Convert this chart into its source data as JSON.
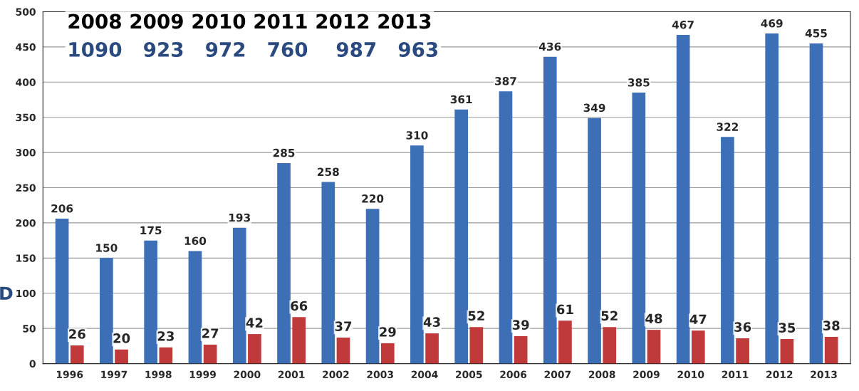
{
  "chart_data": {
    "type": "bar",
    "categories": [
      "1996",
      "1997",
      "1998",
      "1999",
      "2000",
      "2001",
      "2002",
      "2003",
      "2004",
      "2005",
      "2006",
      "2007",
      "2008",
      "2009",
      "2010",
      "2011",
      "2012",
      "2013"
    ],
    "series": [
      {
        "color": "#3d6fb6",
        "values": [
          206,
          150,
          175,
          160,
          193,
          285,
          258,
          220,
          310,
          361,
          387,
          436,
          349,
          385,
          467,
          322,
          469,
          455
        ]
      },
      {
        "color": "#c0393b",
        "values": [
          26,
          20,
          23,
          27,
          42,
          66,
          37,
          29,
          43,
          52,
          39,
          61,
          52,
          48,
          47,
          36,
          35,
          38
        ]
      }
    ],
    "ylim": [
      0,
      500
    ],
    "yticks": [
      0,
      50,
      100,
      150,
      200,
      250,
      300,
      350,
      400,
      450,
      500
    ],
    "grid": "y",
    "data_labels": true,
    "annotations": [
      "2008 2009 2010 2011 2012 2013",
      "1090   923   972   760    987   963",
      "D"
    ]
  }
}
